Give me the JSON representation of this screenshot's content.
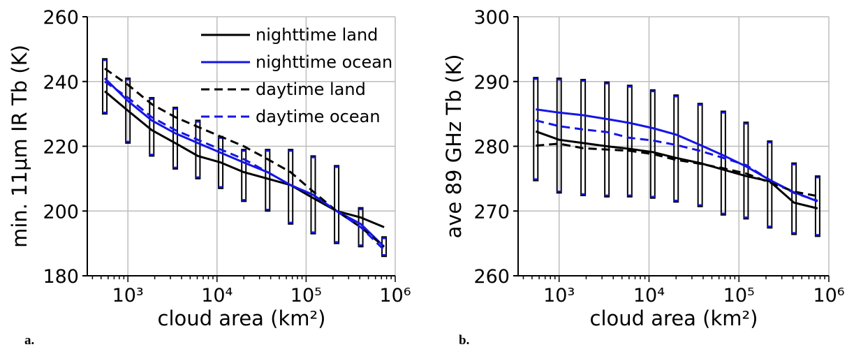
{
  "chart_data": [
    {
      "type": "line",
      "panel_label": "a.",
      "xlabel": "cloud area (km²)",
      "ylabel": "min. 11μm IR Tb (K)",
      "xscale": "log",
      "xlim": [
        350,
        1000000
      ],
      "ylim": [
        180,
        260
      ],
      "grid": true,
      "legend_position": "top-right",
      "x_ticks": [
        "10³",
        "10⁴",
        "10⁵",
        "10⁶"
      ],
      "y_ticks": [
        "180",
        "200",
        "220",
        "240",
        "260"
      ],
      "x": [
        550,
        1000,
        1850,
        3400,
        6100,
        11000,
        20000,
        37000,
        67000,
        120000,
        220000,
        410000,
        750000
      ],
      "series": [
        {
          "name": "nighttime land",
          "color": "#000000",
          "dash": "solid",
          "values": [
            237,
            231,
            225,
            221,
            217,
            215,
            212,
            210,
            208,
            204,
            200,
            198,
            195
          ]
        },
        {
          "name": "nighttime ocean",
          "color": "#1515e6",
          "dash": "solid",
          "values": [
            241,
            234,
            228,
            224,
            221,
            218,
            215,
            212,
            208,
            205,
            200,
            196,
            189
          ]
        },
        {
          "name": "daytime land",
          "color": "#000000",
          "dash": "dashed",
          "values": [
            244,
            239,
            233,
            229,
            226,
            223,
            220,
            216,
            212,
            206,
            200,
            195,
            189
          ]
        },
        {
          "name": "daytime ocean",
          "color": "#1515e6",
          "dash": "dashed",
          "values": [
            240,
            235,
            229,
            225,
            222,
            219,
            216,
            212,
            208,
            205,
            200,
            195,
            188
          ]
        }
      ],
      "ranges": [
        {
          "low": 230,
          "high": 247
        },
        {
          "low": 221,
          "high": 241
        },
        {
          "low": 217,
          "high": 235
        },
        {
          "low": 213,
          "high": 232
        },
        {
          "low": 210,
          "high": 228
        },
        {
          "low": 207,
          "high": 223
        },
        {
          "low": 203,
          "high": 219
        },
        {
          "low": 200,
          "high": 219
        },
        {
          "low": 196,
          "high": 219
        },
        {
          "low": 193,
          "high": 217
        },
        {
          "low": 190,
          "high": 214
        },
        {
          "low": 189,
          "high": 201
        },
        {
          "low": 186,
          "high": 192
        }
      ]
    },
    {
      "type": "line",
      "panel_label": "b.",
      "xlabel": "cloud area (km²)",
      "ylabel": "ave 89 GHz Tb (K)",
      "xscale": "log",
      "xlim": [
        350,
        1000000
      ],
      "ylim": [
        260,
        300
      ],
      "grid": true,
      "x_ticks": [
        "10³",
        "10⁴",
        "10⁵",
        "10⁶"
      ],
      "y_ticks": [
        "260",
        "270",
        "280",
        "290",
        "300"
      ],
      "x": [
        550,
        1000,
        1850,
        3400,
        6100,
        11000,
        20000,
        37000,
        67000,
        120000,
        220000,
        410000,
        750000
      ],
      "series": [
        {
          "name": "nighttime land",
          "color": "#000000",
          "dash": "solid",
          "values": [
            282.3,
            281.0,
            280.5,
            280.0,
            279.6,
            279.1,
            278.2,
            277.4,
            276.4,
            275.4,
            274.6,
            271.3,
            270.4
          ]
        },
        {
          "name": "nighttime ocean",
          "color": "#1515e6",
          "dash": "solid",
          "values": [
            285.7,
            285.2,
            284.8,
            284.2,
            283.6,
            282.8,
            281.8,
            280.2,
            278.6,
            276.9,
            274.8,
            272.9,
            271.5
          ]
        },
        {
          "name": "daytime land",
          "color": "#000000",
          "dash": "dashed",
          "values": [
            280.1,
            280.4,
            279.7,
            279.5,
            279.3,
            278.8,
            277.9,
            277.3,
            276.6,
            275.8,
            274.4,
            273.0,
            272.3
          ]
        },
        {
          "name": "daytime ocean",
          "color": "#1515e6",
          "dash": "dashed",
          "values": [
            284.0,
            283.1,
            282.6,
            282.2,
            281.3,
            280.9,
            280.2,
            279.3,
            278.2,
            277.1,
            274.8,
            272.8,
            271.6
          ]
        }
      ],
      "ranges": [
        {
          "low": 274.7,
          "high": 290.6
        },
        {
          "low": 272.8,
          "high": 290.5
        },
        {
          "low": 272.4,
          "high": 290.3
        },
        {
          "low": 272.2,
          "high": 289.9
        },
        {
          "low": 272.2,
          "high": 289.4
        },
        {
          "low": 272.0,
          "high": 288.7
        },
        {
          "low": 271.4,
          "high": 287.9
        },
        {
          "low": 270.7,
          "high": 286.6
        },
        {
          "low": 269.4,
          "high": 285.4
        },
        {
          "low": 268.8,
          "high": 283.7
        },
        {
          "low": 267.4,
          "high": 280.8
        },
        {
          "low": 266.4,
          "high": 277.4
        },
        {
          "low": 266.1,
          "high": 275.4
        }
      ]
    }
  ]
}
